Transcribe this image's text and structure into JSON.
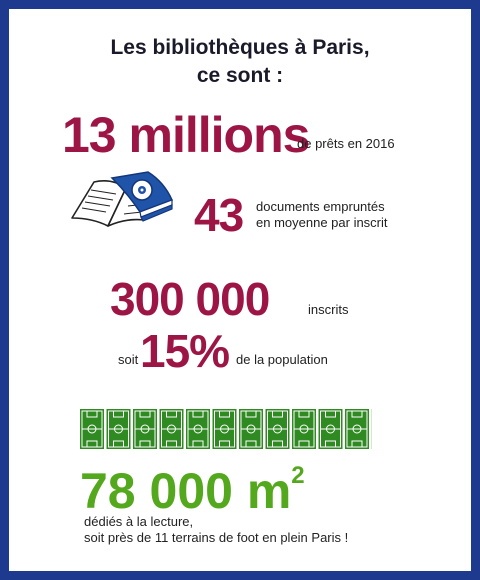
{
  "title": {
    "line1": "Les bibliothèques à Paris,",
    "line2": "ce sont :"
  },
  "loans": {
    "value": "13 millions",
    "label": "de prêts en 2016"
  },
  "documents": {
    "value": "43",
    "label_line1": "documents empruntés",
    "label_line2": "en moyenne par inscrit"
  },
  "registered": {
    "value": "300 000",
    "label": "inscrits"
  },
  "share": {
    "prefix": "soit",
    "value": "15%",
    "label": "de la population"
  },
  "area": {
    "value": "78 000 m",
    "unit_sup": "2",
    "line1": "dédiés à la lecture,",
    "line2": "soit près de 11 terrains de foot en plein Paris !"
  },
  "icons": [
    "book-cd-icon",
    "football-fields-icon"
  ],
  "colors": {
    "border": "#1d3a8f",
    "accent": "#9c1545",
    "green": "#54a81d",
    "book_blue": "#1f54a8"
  },
  "football_fields": 11
}
